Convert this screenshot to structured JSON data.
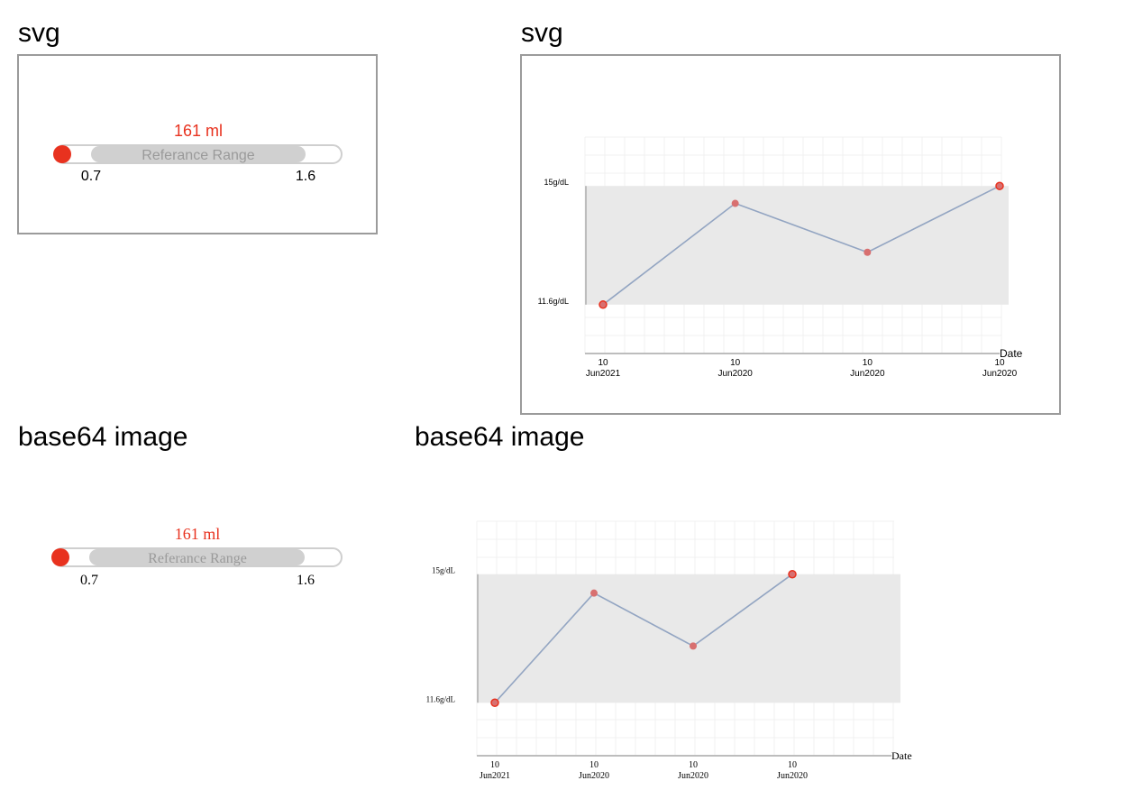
{
  "headings": {
    "top_left": "svg",
    "top_right": "svg",
    "bottom_left": "base64 image",
    "bottom_right": "base64 image"
  },
  "range_indicator": {
    "value_label": "161 ml",
    "bar_label": "Referance Range",
    "min_label": "0.7",
    "max_label": "1.6",
    "value_color": "#e8321f",
    "bar_color": "#d0d0d0"
  },
  "chart_data": {
    "type": "line",
    "x": [
      "10 Jun2021",
      "10 Jun2020",
      "10 Jun2020",
      "10 Jun2020"
    ],
    "x_tick_labels": [
      {
        "day": "10",
        "month": "Jun2021"
      },
      {
        "day": "10",
        "month": "Jun2020"
      },
      {
        "day": "10",
        "month": "Jun2020"
      },
      {
        "day": "10",
        "month": "Jun2020"
      }
    ],
    "values": [
      11.6,
      14.5,
      13.1,
      15.0
    ],
    "xlabel": "Date",
    "y_tick_labels": [
      {
        "label": "15g/dL",
        "value": 15.0
      },
      {
        "label": "11.6g/dL",
        "value": 11.6
      }
    ],
    "reference_band": [
      11.6,
      15.0
    ],
    "ylim": [
      10.2,
      16.4
    ],
    "grid": true,
    "colors": {
      "line": "#93a5c2",
      "point": "#d87070",
      "point_edge": "#e8321f",
      "band": "#e9e9e9",
      "grid": "#f0f0f0"
    }
  }
}
